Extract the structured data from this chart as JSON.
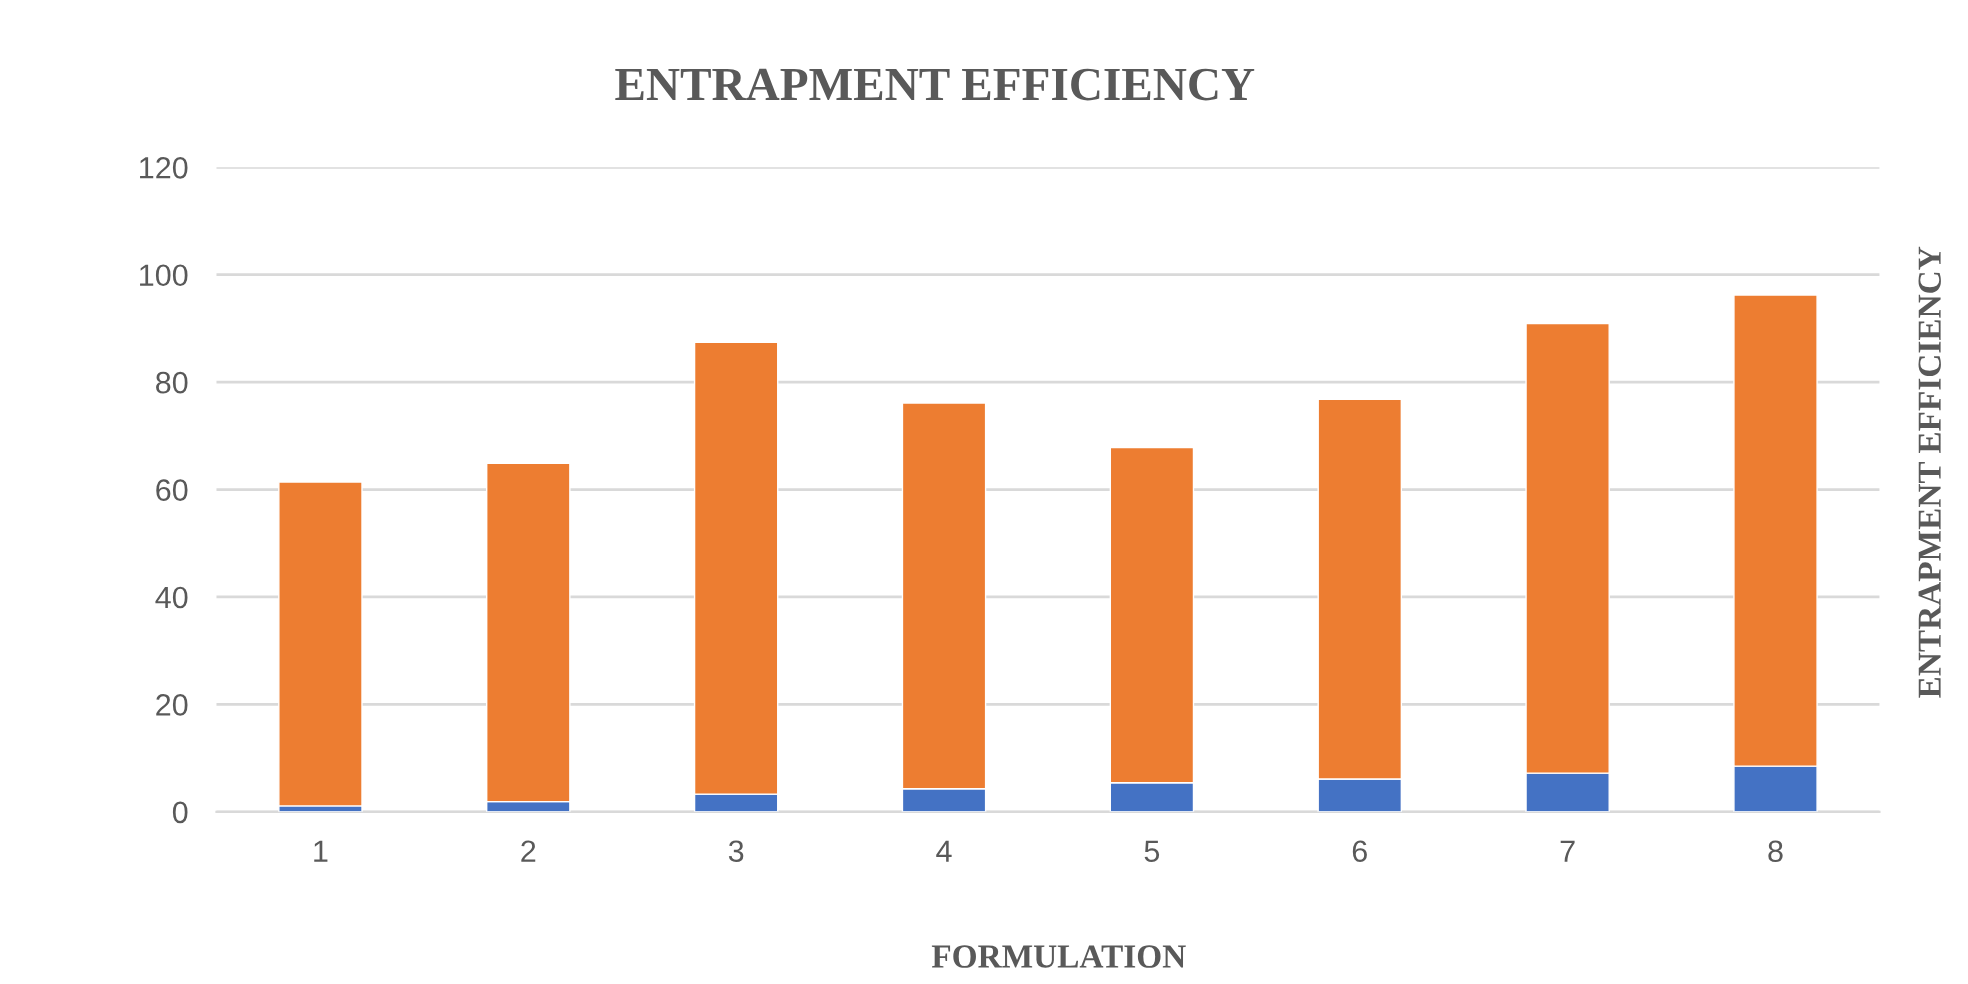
{
  "chart_data": {
    "type": "bar",
    "title": "ENTRAPMENT EFFICIENCY",
    "xlabel": "FORMULATION",
    "ylabel": "ENTRAPMENT EFFICIENCY",
    "categories": [
      "1",
      "2",
      "3",
      "4",
      "5",
      "6",
      "7",
      "8"
    ],
    "stacked": true,
    "series": [
      {
        "color": "#4472c4",
        "values": [
          1.1,
          1.9,
          3.3,
          4.3,
          5.4,
          6.1,
          7.2,
          8.5
        ]
      },
      {
        "color": "#ed7d31",
        "values": [
          60.3,
          63.0,
          84.1,
          71.8,
          62.4,
          70.7,
          83.7,
          87.7
        ]
      }
    ],
    "ylim": [
      0,
      120
    ],
    "yticks": [
      0,
      20,
      40,
      60,
      80,
      100,
      120
    ],
    "grid": "y",
    "legend": false
  }
}
